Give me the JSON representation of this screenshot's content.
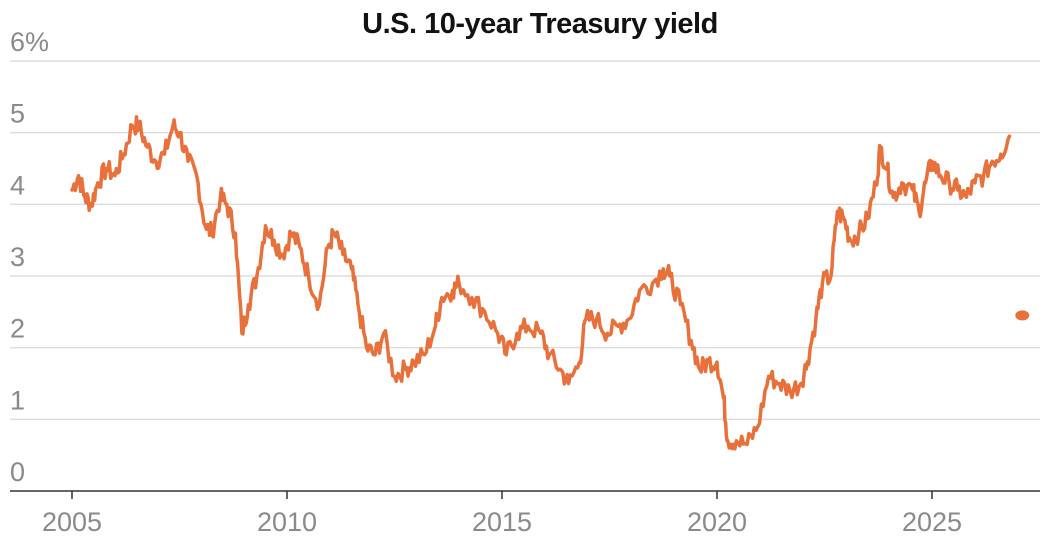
{
  "chart_data": {
    "type": "line",
    "title": "U.S. 10-year Treasury yield",
    "xlabel": "",
    "ylabel": "",
    "xlim": [
      2005,
      2027.4
    ],
    "ylim": [
      0,
      6
    ],
    "y_ticks": [
      "0",
      "1",
      "2",
      "3",
      "4",
      "5",
      "6%"
    ],
    "y_tick_values": [
      0,
      1,
      2,
      3,
      4,
      5,
      6
    ],
    "x_ticks": [
      "2005",
      "2010",
      "2015",
      "2020",
      "2025"
    ],
    "x_tick_values": [
      2005,
      2010,
      2015,
      2020,
      2025
    ],
    "grid": true,
    "legend": "none",
    "series": [
      {
        "color": "#e8703a",
        "x": [
          2005.0,
          2005.15,
          2005.3,
          2005.45,
          2005.6,
          2005.8,
          2006.0,
          2006.2,
          2006.4,
          2006.55,
          2006.75,
          2006.95,
          2007.15,
          2007.35,
          2007.5,
          2007.7,
          2007.9,
          2008.1,
          2008.25,
          2008.45,
          2008.6,
          2008.8,
          2008.95,
          2009.1,
          2009.3,
          2009.5,
          2009.7,
          2009.9,
          2010.1,
          2010.3,
          2010.5,
          2010.75,
          2010.95,
          2011.1,
          2011.3,
          2011.5,
          2011.65,
          2011.85,
          2012.05,
          2012.25,
          2012.5,
          2012.75,
          2012.95,
          2013.2,
          2013.45,
          2013.6,
          2013.85,
          2014.0,
          2014.3,
          2014.6,
          2014.9,
          2015.1,
          2015.35,
          2015.6,
          2015.9,
          2016.1,
          2016.35,
          2016.55,
          2016.8,
          2016.95,
          2017.2,
          2017.45,
          2017.7,
          2017.95,
          2018.2,
          2018.5,
          2018.75,
          2018.9,
          2019.15,
          2019.4,
          2019.6,
          2019.8,
          2020.0,
          2020.15,
          2020.25,
          2020.45,
          2020.7,
          2020.95,
          2021.2,
          2021.45,
          2021.7,
          2021.95,
          2022.1,
          2022.3,
          2022.45,
          2022.65,
          2022.8,
          2022.95,
          2023.1,
          2023.3,
          2023.5,
          2023.7,
          2023.8,
          2023.95,
          2024.1,
          2024.3,
          2024.55,
          2024.7,
          2024.85,
          2025.0,
          2025.2,
          2025.4,
          2025.6,
          2025.8,
          2026.0,
          2026.2,
          2026.4,
          2026.6,
          2026.8
        ],
        "values": [
          4.2,
          4.4,
          4.1,
          4.0,
          4.3,
          4.5,
          4.4,
          4.7,
          5.1,
          5.1,
          4.8,
          4.6,
          4.7,
          5.1,
          5.0,
          4.6,
          4.4,
          3.7,
          3.6,
          4.1,
          4.0,
          3.6,
          2.2,
          2.6,
          3.0,
          3.7,
          3.5,
          3.3,
          3.6,
          3.4,
          3.0,
          2.6,
          3.4,
          3.6,
          3.3,
          3.1,
          2.6,
          2.0,
          1.9,
          2.2,
          1.6,
          1.7,
          1.8,
          1.9,
          2.3,
          2.7,
          2.8,
          2.9,
          2.7,
          2.5,
          2.2,
          1.9,
          2.2,
          2.3,
          2.2,
          1.9,
          1.7,
          1.5,
          1.8,
          2.4,
          2.4,
          2.2,
          2.3,
          2.4,
          2.8,
          2.9,
          3.1,
          3.0,
          2.6,
          2.1,
          1.7,
          1.8,
          1.8,
          1.3,
          0.7,
          0.7,
          0.65,
          0.9,
          1.6,
          1.5,
          1.4,
          1.5,
          1.8,
          2.4,
          2.9,
          3.0,
          3.9,
          3.8,
          3.5,
          3.6,
          3.8,
          4.3,
          4.8,
          4.5,
          4.1,
          4.3,
          4.2,
          3.9,
          4.3,
          4.6,
          4.4,
          4.3,
          4.2,
          4.1,
          4.3,
          4.4,
          4.6,
          4.7,
          4.95
        ]
      }
    ],
    "annotations": [
      {
        "type": "dot",
        "x": 2027.1,
        "y": 2.45,
        "color": "#e8703a"
      }
    ]
  }
}
